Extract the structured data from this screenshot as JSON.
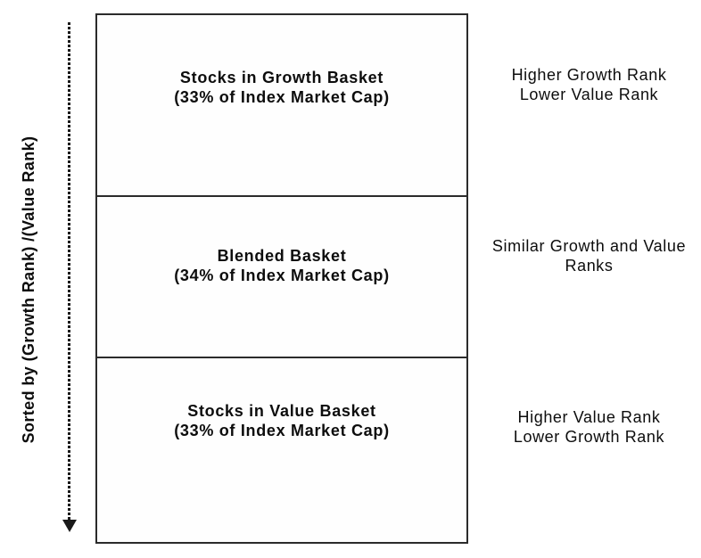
{
  "axis": {
    "label": "Sorted by (Growth Rank) /(Value Rank)",
    "arrow_icon": "dotted-down-arrow",
    "arrow_direction": "down"
  },
  "box": {
    "border_color": "#2b2b2b",
    "background": "#ffffff",
    "sections": [
      {
        "title": "Stocks in Growth Basket",
        "subtitle": "(33% of Index Market Cap)",
        "market_cap_percent": 33,
        "annotation": [
          "Higher Growth Rank",
          "Lower Value Rank"
        ]
      },
      {
        "title": "Blended Basket",
        "subtitle": "(34% of Index Market Cap)",
        "market_cap_percent": 34,
        "annotation": [
          "Similar Growth and Value",
          "Ranks"
        ]
      },
      {
        "title": "Stocks in Value Basket",
        "subtitle": "(33% of Index Market Cap)",
        "market_cap_percent": 33,
        "annotation": [
          "Higher Value Rank",
          "Lower Growth Rank"
        ]
      }
    ]
  },
  "colors": {
    "text": "#0d0d0d",
    "line": "#1a1a1a",
    "background": "#ffffff"
  }
}
